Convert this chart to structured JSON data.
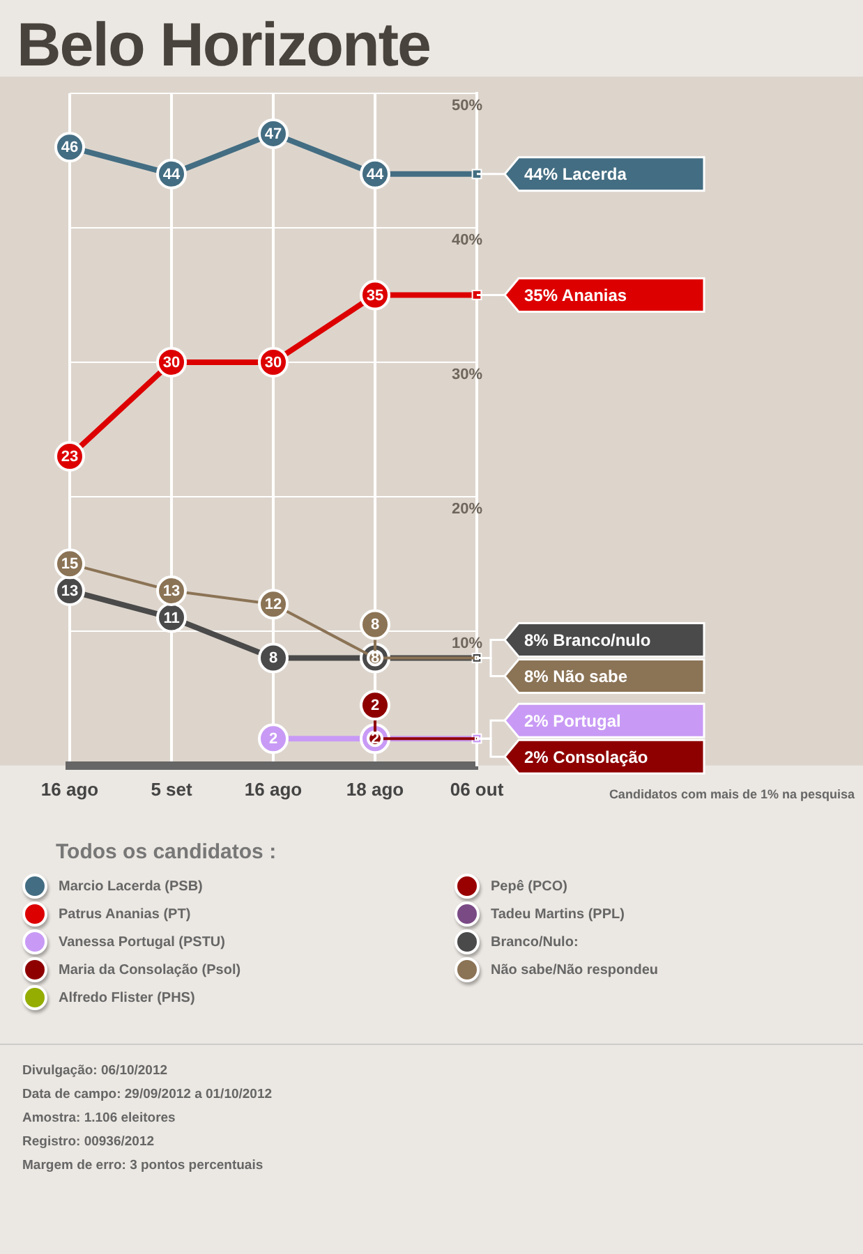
{
  "chart_data": {
    "type": "line",
    "title": "Belo Horizonte",
    "categories": [
      "16 ago",
      "5 set",
      "16 ago",
      "18 ago",
      "06 out"
    ],
    "ylim": [
      0,
      50
    ],
    "yticks": [
      {
        "value": 0,
        "label": null
      },
      {
        "value": 10,
        "label": "10%"
      },
      {
        "value": 20,
        "label": "20%"
      },
      {
        "value": 30,
        "label": "30%"
      },
      {
        "value": 40,
        "label": "40%"
      },
      {
        "value": 50,
        "label": "50%"
      }
    ],
    "grid": true,
    "legend": "bottom",
    "legend_title": "Todos os candidatos :",
    "marker": "circle",
    "series": [
      {
        "name": "Marcio Lacerda (PSB)",
        "color": "#436d82",
        "values": [
          46,
          44,
          47,
          44,
          44
        ],
        "value_labels": [
          "46",
          "44",
          "47",
          "44",
          null
        ]
      },
      {
        "name": "Patrus Ananias (PT)",
        "color": "#dd0000",
        "values": [
          23,
          30,
          30,
          35,
          35
        ],
        "value_labels": [
          "23",
          "30",
          "30",
          "35",
          null
        ]
      },
      {
        "name": "Vanessa Portugal (PSTU)",
        "color": "#c89af5",
        "values": [
          null,
          null,
          2,
          2,
          2
        ],
        "value_labels": [
          null,
          null,
          "2",
          "2",
          null
        ]
      },
      {
        "name": "Maria da Consolação (Psol)",
        "color": "#8e0000",
        "values": [
          null,
          null,
          null,
          2,
          2
        ],
        "value_labels": [
          null,
          null,
          null,
          "2",
          null
        ]
      },
      {
        "name": "Alfredo Flister (PHS)",
        "color": "#94ad00",
        "values": [
          null,
          null,
          null,
          null,
          null
        ]
      },
      {
        "name": "Pepê (PCO)",
        "color": "#990000",
        "values": [
          null,
          null,
          null,
          null,
          null
        ]
      },
      {
        "name": "Tadeu Martins (PPL)",
        "color": "#7a4a85",
        "values": [
          null,
          null,
          null,
          null,
          null
        ]
      },
      {
        "name": "Branco/Nulo:",
        "color": "#4a4a4a",
        "values": [
          13,
          11,
          8,
          8,
          8
        ],
        "value_labels": [
          "13",
          "11",
          "8",
          "8",
          null
        ]
      },
      {
        "name": "Não sabe/Não respondeu",
        "color": "#8b7355",
        "values": [
          15,
          13,
          12,
          8,
          8
        ],
        "value_labels": [
          "15",
          "13",
          "12",
          "8",
          null
        ]
      }
    ],
    "annotations": [
      {
        "text": "44% Lacerda",
        "x": "06 out",
        "y": 44
      },
      {
        "text": "35% Ananias",
        "x": "06 out",
        "y": 35
      },
      {
        "text": "2% Portugal",
        "x": "06 out",
        "y": 2
      },
      {
        "text": "2% Consolação",
        "x": "06 out",
        "y": 2
      },
      {
        "text": "8% Branco/nulo",
        "x": "06 out",
        "y": 8
      },
      {
        "text": "8% Não sabe",
        "x": "06 out",
        "y": 8
      },
      "Candidatos com mais de 1% na pesquisa",
      "Divulgação: 06/10/2012",
      "Data de campo: 29/09/2012 a 01/10/2012",
      "Amostra: 1.106 eleitores",
      "Registro: 00936/2012",
      "Margem de erro: 3 pontos percentuais"
    ]
  }
}
